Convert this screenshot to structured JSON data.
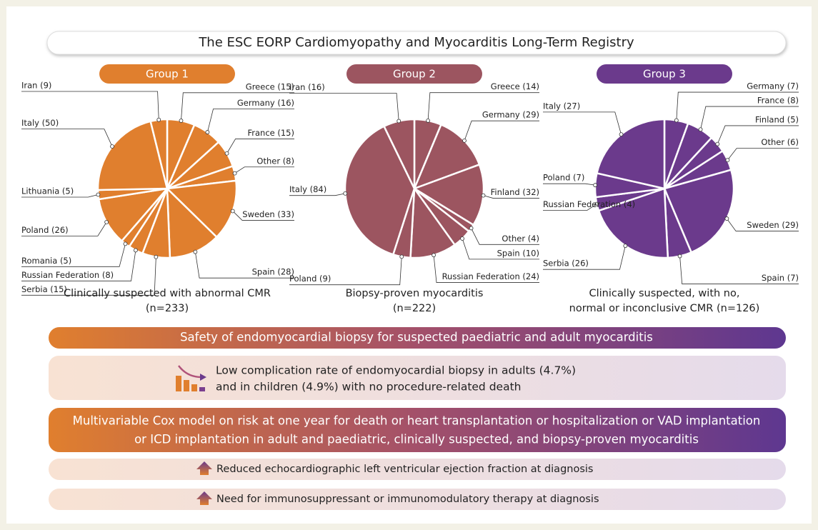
{
  "header": {
    "title": "The ESC EORP Cardiomyopathy and Myocarditis Long-Term Registry"
  },
  "chart_data": [
    {
      "type": "pie",
      "title": "Group 1",
      "color": "#e07f2e",
      "categories": [
        "Greece (15)",
        "Germany (16)",
        "France (15)",
        "Other (8)",
        "Sweden (33)",
        "Spain (28)",
        "Serbia (15)",
        "Russian Federation (8)",
        "Romania (5)",
        "Poland (26)",
        "Lithuania (5)",
        "Italy (50)",
        "Iran (9)"
      ],
      "values": [
        15,
        16,
        15,
        8,
        33,
        28,
        15,
        8,
        5,
        26,
        5,
        50,
        9
      ],
      "caption": [
        "Clinically suspected with abnormal CMR",
        "(n=233)"
      ]
    },
    {
      "type": "pie",
      "title": "Group 2",
      "color": "#9c5560",
      "categories": [
        "Greece (14)",
        "Germany (29)",
        "Finland (32)",
        "Other (4)",
        "Spain (10)",
        "Russian Federation (24)",
        "Poland (9)",
        "Italy (84)",
        "Iran (16)"
      ],
      "values": [
        14,
        29,
        32,
        4,
        10,
        24,
        9,
        84,
        16
      ],
      "caption": [
        "Biopsy-proven myocarditis",
        "(n=222)"
      ]
    },
    {
      "type": "pie",
      "title": "Group 3",
      "color": "#6b3a8c",
      "categories": [
        "Germany (7)",
        "France (8)",
        "Finland (5)",
        "Other (6)",
        "Sweden (29)",
        "Spain (7)",
        "Serbia (26)",
        "Russian Federation (4)",
        "Poland (7)",
        "Italy (27)"
      ],
      "values": [
        7,
        8,
        5,
        6,
        29,
        7,
        26,
        4,
        7,
        27
      ],
      "caption": [
        "Clinically suspected, with no,",
        "normal or inconclusive CMR (n=126)"
      ]
    }
  ],
  "safety": {
    "title": "Safety of endomyocardial biopsy for suspected paediatric and adult myocarditis",
    "text": [
      "Low complication rate of endomyocardial biopsy in adults (4.7%)",
      "and in children (4.9%) with no procedure-related death"
    ]
  },
  "cox": {
    "title": [
      "Multivariable Cox model on risk at one year for death or heart transplantation or hospitalization or VAD implantation",
      "or ICD implantation in adult and paediatric, clinically suspected, and biopsy-proven myocarditis"
    ],
    "findings": [
      "Reduced echocardiographic left ventricular ejection fraction at diagnosis",
      "Need for immunosuppressant or immunomodulatory therapy at diagnosis"
    ]
  }
}
